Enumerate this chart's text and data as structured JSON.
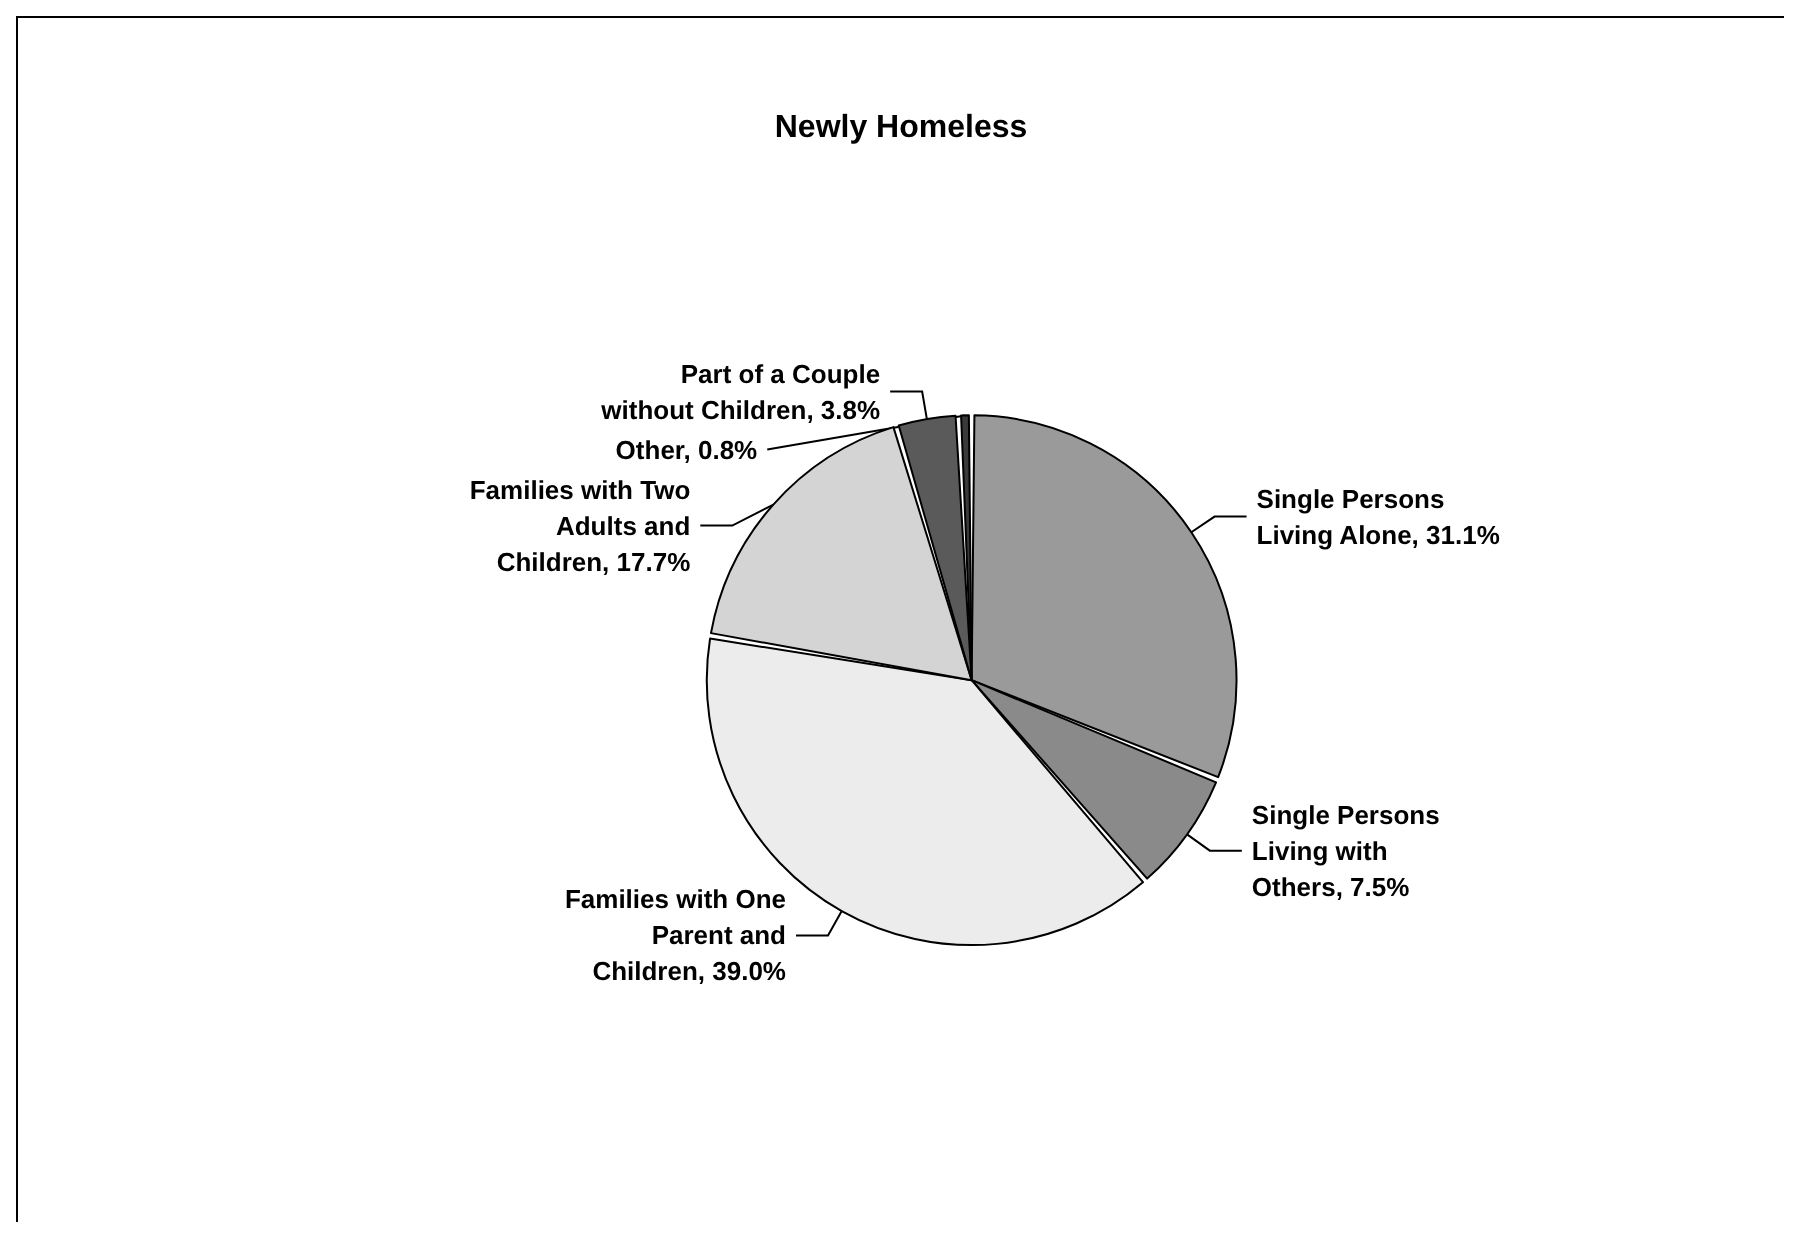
{
  "chart_data": {
    "type": "pie",
    "title": "Newly Homeless",
    "categories": [
      "Single Persons Living Alone",
      "Single Persons Living with Others",
      "Families with One Parent and Children",
      "Families with Two Adults and Children",
      "Part of a Couple without Children",
      "Other"
    ],
    "values": [
      31.1,
      7.5,
      39.0,
      17.7,
      3.8,
      0.8
    ],
    "value_labels": [
      "31.1%",
      "7.5%",
      "39.0%",
      "17.7%",
      "3.8%",
      "0.8%"
    ],
    "colors": [
      "#9a9a9a",
      "#8a8a8a",
      "#ececec",
      "#d4d4d4",
      "#5a5a5a",
      "#3a3a3a"
    ]
  }
}
